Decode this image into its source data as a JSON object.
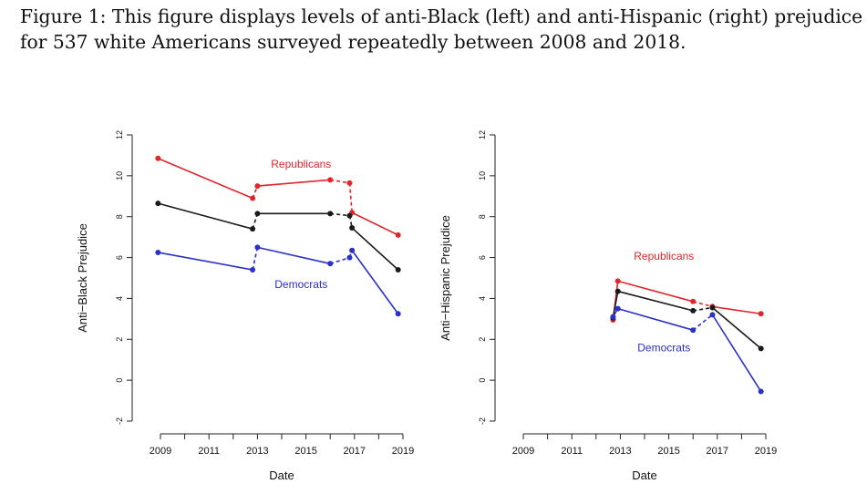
{
  "caption": "Figure 1: This figure displays levels of anti-Black (left) and anti-Hispanic (right) prejudice\nfor 537 white Americans surveyed repeatedly between 2008 and 2018.",
  "colors": {
    "republicans": "#e0262b",
    "overall": "#1a1a1a",
    "democrats": "#2a30c8"
  },
  "chart_data": [
    {
      "type": "line",
      "xlabel": "Date",
      "ylabel": "Anti−Black Prejudice",
      "xlim": [
        2008.7,
        2019.2
      ],
      "ylim": [
        -2,
        12
      ],
      "xticks": [
        2009,
        2011,
        2013,
        2015,
        2017,
        2019
      ],
      "yticks": [
        -2,
        0,
        2,
        4,
        6,
        8,
        10,
        12
      ],
      "annotations": [
        {
          "text": "Republicans",
          "x": 2014.8,
          "y": 10.4,
          "color": "republicans"
        },
        {
          "text": "Democrats",
          "x": 2014.8,
          "y": 4.5,
          "color": "democrats"
        }
      ],
      "series": [
        {
          "name": "Republicans",
          "color": "republicans",
          "x": [
            2008.9,
            2012.8,
            2013.0,
            2016.0,
            2016.8,
            2016.9,
            2018.8
          ],
          "y": [
            10.85,
            8.9,
            9.5,
            9.8,
            9.65,
            8.2,
            7.1
          ],
          "dashed": [
            false,
            true,
            false,
            true,
            true,
            false
          ]
        },
        {
          "name": "",
          "color": "overall",
          "x": [
            2008.9,
            2012.8,
            2013.0,
            2016.0,
            2016.8,
            2016.9,
            2018.8
          ],
          "y": [
            8.65,
            7.4,
            8.15,
            8.15,
            8.05,
            7.45,
            5.4
          ],
          "dashed": [
            false,
            true,
            false,
            true,
            true,
            false
          ]
        },
        {
          "name": "Democrats",
          "color": "democrats",
          "x": [
            2008.9,
            2012.8,
            2013.0,
            2016.0,
            2016.8,
            2016.9,
            2018.8
          ],
          "y": [
            6.25,
            5.4,
            6.5,
            5.7,
            6.0,
            6.35,
            3.25
          ],
          "dashed": [
            false,
            true,
            false,
            true,
            true,
            false
          ]
        }
      ]
    },
    {
      "type": "line",
      "xlabel": "Date",
      "ylabel": "Anti−Hispanic Prejudice",
      "xlim": [
        2008.7,
        2019.2
      ],
      "ylim": [
        -2,
        12
      ],
      "xticks": [
        2009,
        2011,
        2013,
        2015,
        2017,
        2019
      ],
      "yticks": [
        -2,
        0,
        2,
        4,
        6,
        8,
        10,
        12
      ],
      "annotations": [
        {
          "text": "Republicans",
          "x": 2014.8,
          "y": 5.9,
          "color": "republicans"
        },
        {
          "text": "Democrats",
          "x": 2014.8,
          "y": 1.4,
          "color": "democrats"
        }
      ],
      "series": [
        {
          "name": "Republicans",
          "color": "republicans",
          "x": [
            2012.7,
            2012.9,
            2016.0,
            2016.8,
            2018.8
          ],
          "y": [
            2.95,
            4.85,
            3.85,
            3.6,
            3.25
          ],
          "dashed": [
            false,
            false,
            true,
            false
          ]
        },
        {
          "name": "",
          "color": "overall",
          "x": [
            2012.7,
            2012.9,
            2016.0,
            2016.8,
            2018.8
          ],
          "y": [
            3.05,
            4.35,
            3.4,
            3.55,
            1.55
          ],
          "dashed": [
            false,
            false,
            true,
            false
          ]
        },
        {
          "name": "Democrats",
          "color": "democrats",
          "x": [
            2012.7,
            2012.9,
            2016.0,
            2016.8,
            2018.8
          ],
          "y": [
            3.1,
            3.5,
            2.45,
            3.2,
            -0.55
          ],
          "dashed": [
            false,
            false,
            true,
            false
          ]
        }
      ]
    }
  ]
}
